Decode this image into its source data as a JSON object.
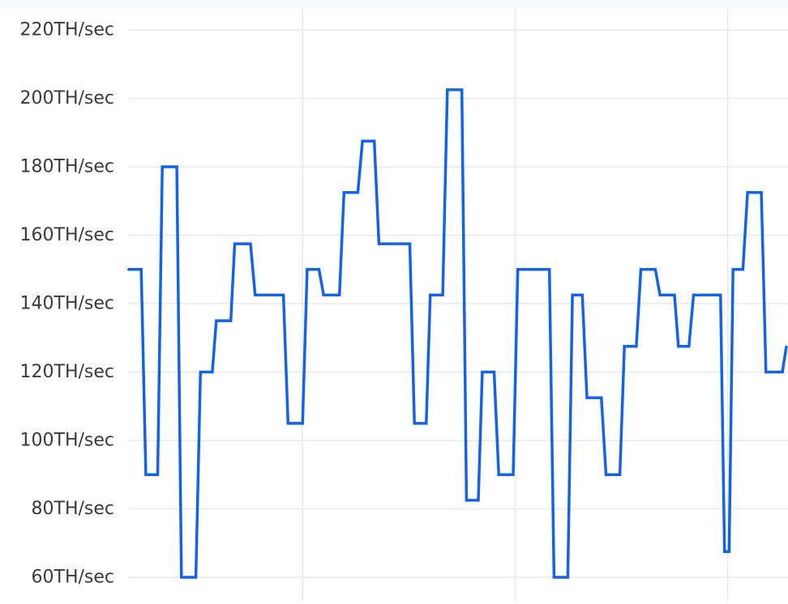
{
  "chart_data": {
    "type": "line",
    "title": "",
    "xlabel": "",
    "ylabel": "",
    "ylim": [
      60,
      220
    ],
    "y_ticks": [
      {
        "value": 220,
        "label": "220TH/sec"
      },
      {
        "value": 200,
        "label": "200TH/sec"
      },
      {
        "value": 180,
        "label": "180TH/sec"
      },
      {
        "value": 160,
        "label": "160TH/sec"
      },
      {
        "value": 140,
        "label": "140TH/sec"
      },
      {
        "value": 120,
        "label": "120TH/sec"
      },
      {
        "value": 100,
        "label": "100TH/sec"
      },
      {
        "value": 80,
        "label": "80TH/sec"
      },
      {
        "value": 60,
        "label": "60TH/sec"
      }
    ],
    "x_range": [
      0,
      100
    ],
    "x_gridlines": [
      26.5,
      58.8,
      91.1
    ],
    "grid": true,
    "legend": "none",
    "series": [
      {
        "color": "#1463e6",
        "points": [
          [
            0,
            150
          ],
          [
            2,
            150
          ],
          [
            2.7,
            90
          ],
          [
            4.5,
            90
          ],
          [
            5.2,
            180
          ],
          [
            7.4,
            180
          ],
          [
            8.1,
            60
          ],
          [
            10.3,
            60
          ],
          [
            11,
            120
          ],
          [
            12.8,
            120
          ],
          [
            13.4,
            135
          ],
          [
            15.6,
            135
          ],
          [
            16.2,
            157.5
          ],
          [
            18.6,
            157.5
          ],
          [
            19.3,
            142.5
          ],
          [
            23.6,
            142.5
          ],
          [
            24.3,
            105
          ],
          [
            26.5,
            105
          ],
          [
            27.2,
            150
          ],
          [
            29,
            150
          ],
          [
            29.7,
            142.5
          ],
          [
            32.1,
            142.5
          ],
          [
            32.8,
            172.5
          ],
          [
            34.9,
            172.5
          ],
          [
            35.6,
            187.5
          ],
          [
            37.4,
            187.5
          ],
          [
            38.1,
            157.5
          ],
          [
            42.8,
            157.5
          ],
          [
            43.5,
            105
          ],
          [
            45.3,
            105
          ],
          [
            45.9,
            142.5
          ],
          [
            47.8,
            142.5
          ],
          [
            48.5,
            202.5
          ],
          [
            50.7,
            202.5
          ],
          [
            51.4,
            82.5
          ],
          [
            53.2,
            82.5
          ],
          [
            53.8,
            120
          ],
          [
            55.6,
            120
          ],
          [
            56.3,
            90
          ],
          [
            58.5,
            90
          ],
          [
            59.2,
            150
          ],
          [
            64,
            150
          ],
          [
            64.7,
            60
          ],
          [
            66.8,
            60
          ],
          [
            67.5,
            142.5
          ],
          [
            69,
            142.5
          ],
          [
            69.7,
            112.5
          ],
          [
            71.9,
            112.5
          ],
          [
            72.6,
            90
          ],
          [
            74.7,
            90
          ],
          [
            75.4,
            127.5
          ],
          [
            77.2,
            127.5
          ],
          [
            77.9,
            150
          ],
          [
            80.1,
            150
          ],
          [
            80.8,
            142.5
          ],
          [
            83,
            142.5
          ],
          [
            83.6,
            127.5
          ],
          [
            85.2,
            127.5
          ],
          [
            85.9,
            142.5
          ],
          [
            90,
            142.5
          ],
          [
            90.6,
            67.5
          ],
          [
            91.3,
            67.5
          ],
          [
            91.9,
            150
          ],
          [
            93.4,
            150
          ],
          [
            94.1,
            172.5
          ],
          [
            96.2,
            172.5
          ],
          [
            96.9,
            120
          ],
          [
            99.4,
            120
          ],
          [
            100,
            127.5
          ]
        ]
      }
    ]
  }
}
